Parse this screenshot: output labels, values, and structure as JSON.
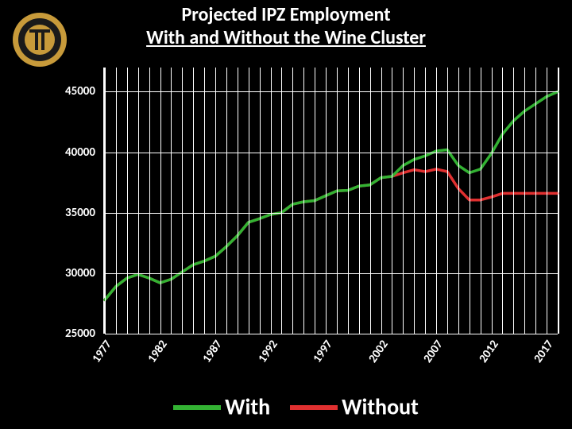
{
  "logo": {
    "outer_ring_color": "#c79a3a",
    "inner_ring_color": "#1a1a1a",
    "center_color": "#c79a3a"
  },
  "title": {
    "line1": "Projected IPZ Employment",
    "line2": "With and Without the Wine Cluster",
    "fontsize": 24,
    "color": "#ffffff"
  },
  "chart": {
    "type": "line",
    "background_color": "#000000",
    "grid_color": "#ffffff",
    "ylim_min": 25000,
    "ylim_max": 47000,
    "yticks": [
      25000,
      30000,
      35000,
      40000,
      45000
    ],
    "ytick_labels": [
      "25000",
      "30000",
      "35000",
      "40000",
      "45000"
    ],
    "xlim_min": 1977,
    "xlim_max": 2018,
    "xticks": [
      1977,
      1982,
      1987,
      1992,
      1997,
      2002,
      2007,
      2012,
      2017
    ],
    "xtick_labels": [
      "1977",
      "1982",
      "1987",
      "1992",
      "1997",
      "2002",
      "2007",
      "2012",
      "2017"
    ],
    "label_fontsize": 15,
    "label_color": "#ffffff",
    "line_width": 3.5,
    "series": {
      "with": {
        "label": "With",
        "color": "#33b233",
        "x": [
          1977,
          1978,
          1979,
          1980,
          1981,
          1982,
          1983,
          1984,
          1985,
          1986,
          1987,
          1988,
          1989,
          1990,
          1991,
          1992,
          1993,
          1994,
          1995,
          1996,
          1997,
          1998,
          1999,
          2000,
          2001,
          2002,
          2003,
          2004,
          2005,
          2006,
          2007,
          2008,
          2009,
          2010,
          2011,
          2012,
          2013,
          2014,
          2015,
          2016,
          2017,
          2018
        ],
        "y": [
          27800,
          28900,
          29600,
          29900,
          29600,
          29200,
          29500,
          30100,
          30700,
          31000,
          31400,
          32200,
          33100,
          34200,
          34500,
          34850,
          35000,
          35700,
          35900,
          36000,
          36400,
          36800,
          36850,
          37200,
          37300,
          37900,
          38000,
          38900,
          39400,
          39700,
          40100,
          40200,
          38900,
          38300,
          38600,
          39900,
          41500,
          42600,
          43400,
          44000,
          44600,
          45000
        ]
      },
      "without": {
        "label": "Without",
        "color": "#e03030",
        "x": [
          1977,
          1978,
          1979,
          1980,
          1981,
          1982,
          1983,
          1984,
          1985,
          1986,
          1987,
          1988,
          1989,
          1990,
          1991,
          1992,
          1993,
          1994,
          1995,
          1996,
          1997,
          1998,
          1999,
          2000,
          2001,
          2002,
          2003,
          2004,
          2005,
          2006,
          2007,
          2008,
          2009,
          2010,
          2011,
          2012,
          2013,
          2014,
          2015,
          2016,
          2017,
          2018
        ],
        "y": [
          27800,
          28900,
          29600,
          29900,
          29600,
          29200,
          29500,
          30100,
          30700,
          31000,
          31400,
          32200,
          33100,
          34200,
          34500,
          34850,
          35000,
          35700,
          35900,
          36000,
          36400,
          36800,
          36850,
          37200,
          37300,
          37900,
          38000,
          38300,
          38550,
          38400,
          38600,
          38400,
          37000,
          36050,
          36050,
          36300,
          36600,
          36600,
          36600,
          36600,
          36600,
          36600
        ]
      }
    }
  },
  "legend": {
    "fontsize": 28,
    "items": [
      {
        "color": "#33b233",
        "label": "With"
      },
      {
        "color": "#e03030",
        "label": "Without"
      }
    ]
  }
}
